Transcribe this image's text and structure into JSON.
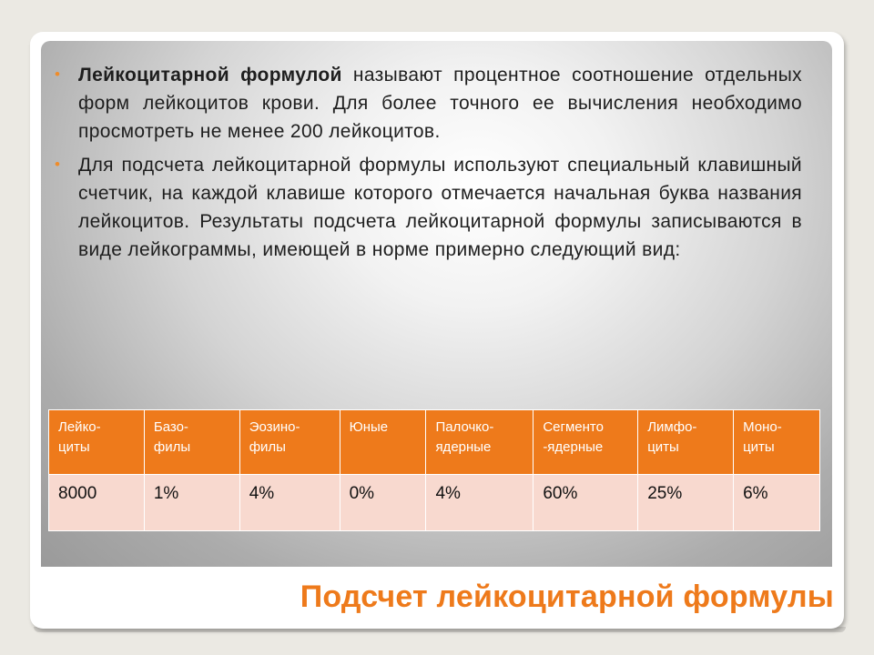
{
  "slide": {
    "bullets": [
      {
        "bold": "Лейкоцитарной формулой",
        "text": " называют процентное соотношение отдельных форм лейкоцитов крови. Для более точного ее вычисления необходимо просмотреть не менее 200 лейкоцитов."
      },
      {
        "bold": "",
        "text": "Для подсчета лейкоцитарной формулы используют специальный клавишный счетчик, на каждой клавише которого отмечается начальная буква названия лейкоцитов. Результаты подсчета лейкоцитарной формулы записываются в виде лейкограммы, имеющей в норме примерно следующий вид:"
      }
    ],
    "bullet_symbol": "•",
    "table": {
      "headers": [
        [
          "Лейко-",
          "циты"
        ],
        [
          "Базо-",
          "филы"
        ],
        [
          "Эозино-",
          "филы"
        ],
        [
          "Юные"
        ],
        [
          "Палочко-",
          "ядерные"
        ],
        [
          "Сегменто",
          "-ядерные"
        ],
        [
          "Лимфо-",
          "циты"
        ],
        [
          "Моно-",
          "циты"
        ]
      ],
      "row": [
        "8000",
        "1%",
        "4%",
        "0%",
        "4%",
        "60%",
        "25%",
        "6%"
      ]
    },
    "title": "Подсчет лейкоцитарной формулы"
  },
  "colors": {
    "accent": "#ee7a1b",
    "table_row_bg": "#f8d9cf",
    "page_bg": "#ebe9e3"
  }
}
